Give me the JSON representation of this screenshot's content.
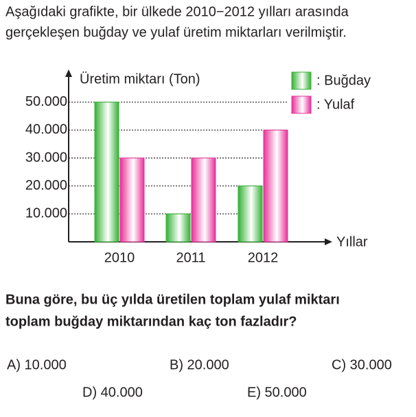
{
  "intro": [
    "Aşağıdaki grafikte, bir ülkede 2010−2012 yılları arasında",
    "gerçekleşen buğday ve yulaf üretim miktarları verilmiştir."
  ],
  "chart_data": {
    "type": "bar",
    "y_label": "Üretim miktarı (Ton)",
    "x_label": "Yıllar",
    "categories": [
      "2010",
      "2011",
      "2012"
    ],
    "series": [
      {
        "name": ": Buğday",
        "color": "#35b135",
        "values": [
          50000,
          10000,
          20000
        ]
      },
      {
        "name": ": Yulaf",
        "color": "#e8309a",
        "values": [
          30000,
          30000,
          40000
        ]
      }
    ],
    "ylim": [
      0,
      60000
    ],
    "yticks": [
      {
        "value": 10000,
        "label": "10.000"
      },
      {
        "value": 20000,
        "label": "20.000"
      },
      {
        "value": 30000,
        "label": "30.000"
      },
      {
        "value": 40000,
        "label": "40.000"
      },
      {
        "value": 50000,
        "label": "50.000"
      }
    ],
    "grid": true
  },
  "question": [
    "Buna göre, bu üç yılda üretilen toplam yulaf miktarı",
    "toplam buğday miktarından kaç ton fazladır?"
  ],
  "options": [
    "A) 10.000",
    "B) 20.000",
    "C) 30.000",
    "D) 40.000",
    "E) 50.000"
  ]
}
